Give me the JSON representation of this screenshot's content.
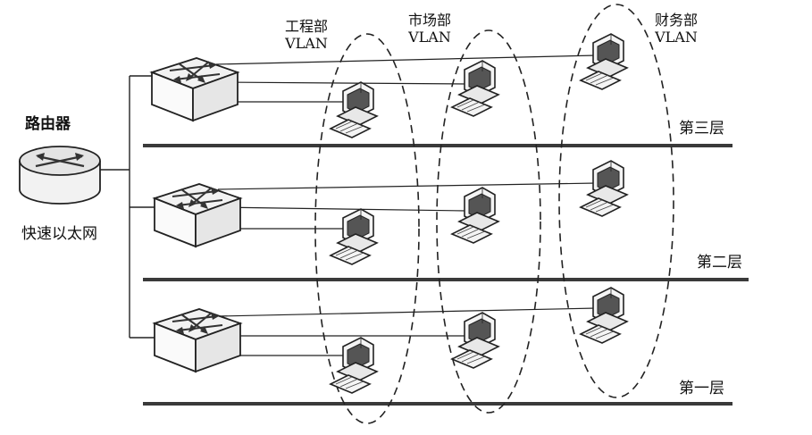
{
  "router": {
    "label": "路由器",
    "network": "快速以太网"
  },
  "vlans": [
    {
      "name": "工程部",
      "tag": "VLAN"
    },
    {
      "name": "市场部",
      "tag": "VLAN"
    },
    {
      "name": "财务部",
      "tag": "VLAN"
    }
  ],
  "floors": [
    "第三层",
    "第二层",
    "第一层"
  ],
  "colors": {
    "line": "#222222",
    "floor_bar": "#3a3a3a",
    "device_fill": "#f4f4f4"
  }
}
